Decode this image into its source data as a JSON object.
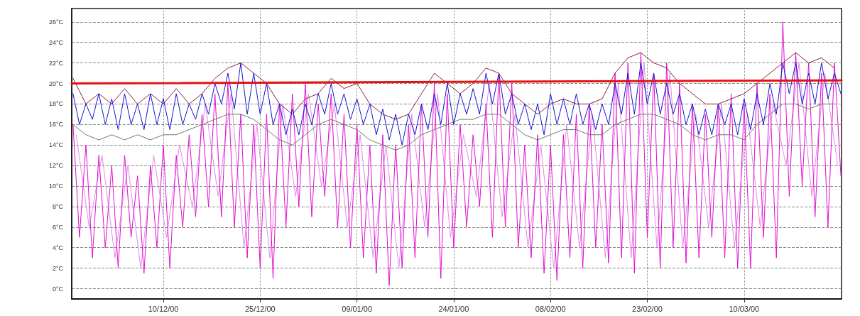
{
  "chart_data": {
    "type": "line",
    "x": [
      "2000-11-26",
      "2000-11-27",
      "2000-11-28",
      "2000-11-29",
      "2000-11-30",
      "2000-12-01",
      "2000-12-02",
      "2000-12-03",
      "2000-12-04",
      "2000-12-05",
      "2000-12-06",
      "2000-12-07",
      "2000-12-08",
      "2000-12-09",
      "2000-12-10",
      "2000-12-11",
      "2000-12-12",
      "2000-12-13",
      "2000-12-14",
      "2000-12-15",
      "2000-12-16",
      "2000-12-17",
      "2000-12-18",
      "2000-12-19",
      "2000-12-20",
      "2000-12-21",
      "2000-12-22",
      "2000-12-23",
      "2000-12-24",
      "2000-12-25",
      "2000-12-26",
      "2000-12-27",
      "2000-12-28",
      "2000-12-29",
      "2000-12-30",
      "2000-12-31",
      "2001-01-01",
      "2001-01-02",
      "2001-01-03",
      "2001-01-04",
      "2001-01-05",
      "2001-01-06",
      "2001-01-07",
      "2001-01-08",
      "2001-01-09",
      "2001-01-10",
      "2001-01-11",
      "2001-01-12",
      "2001-01-13",
      "2001-01-14",
      "2001-01-15",
      "2001-01-16",
      "2001-01-17",
      "2001-01-18",
      "2001-01-19",
      "2001-01-20",
      "2001-01-21",
      "2001-01-22",
      "2001-01-23",
      "2001-01-24",
      "2001-01-25",
      "2001-01-26",
      "2001-01-27",
      "2001-01-28",
      "2001-01-29",
      "2001-01-30",
      "2001-01-31",
      "2001-02-01",
      "2001-02-02",
      "2001-02-03",
      "2001-02-04",
      "2001-02-05",
      "2001-02-06",
      "2001-02-07",
      "2001-02-08",
      "2001-02-09",
      "2001-02-10",
      "2001-02-11",
      "2001-02-12",
      "2001-02-13",
      "2001-02-14",
      "2001-02-15",
      "2001-02-16",
      "2001-02-17",
      "2001-02-18",
      "2001-02-19",
      "2001-02-20",
      "2001-02-21",
      "2001-02-22",
      "2001-02-23",
      "2001-02-24",
      "2001-02-25",
      "2001-02-26",
      "2001-02-27",
      "2001-02-28",
      "2001-03-01",
      "2001-03-02",
      "2001-03-03",
      "2001-03-04",
      "2001-03-05",
      "2001-03-06",
      "2001-03-07",
      "2001-03-08",
      "2001-03-09",
      "2001-03-10",
      "2001-03-11",
      "2001-03-12",
      "2001-03-13",
      "2001-03-14",
      "2001-03-15",
      "2001-03-16",
      "2001-03-17",
      "2001-03-18",
      "2001-03-19",
      "2001-03-20",
      "2001-03-21",
      "2001-03-22",
      "2001-03-23",
      "2001-03-24",
      "2001-03-25"
    ],
    "series": [
      {
        "color": "#e488ea",
        "x": [
          "2000-11-26T12:00",
          "2000-11-28T12:00",
          "2000-11-30T12:00",
          "2000-12-02T12:00",
          "2000-12-04T12:00",
          "2000-12-06T12:00",
          "2000-12-08T12:00",
          "2000-12-10T12:00",
          "2000-12-12T12:00",
          "2000-12-14T12:00",
          "2000-12-16T12:00",
          "2000-12-18T12:00",
          "2000-12-20T12:00",
          "2000-12-22T12:00",
          "2000-12-24T12:00",
          "2000-12-26T12:00",
          "2000-12-28T12:00",
          "2000-12-30T12:00",
          "2001-01-01T12:00",
          "2001-01-03T12:00",
          "2001-01-05T12:00",
          "2001-01-07T12:00",
          "2001-01-09T12:00",
          "2001-01-11T12:00",
          "2001-01-13T12:00",
          "2001-01-15T12:00",
          "2001-01-17T12:00",
          "2001-01-19T12:00",
          "2001-01-21T12:00",
          "2001-01-23T12:00",
          "2001-01-25T12:00",
          "2001-01-27T12:00",
          "2001-01-29T12:00",
          "2001-01-31T12:00",
          "2001-02-02T12:00",
          "2001-02-04T12:00",
          "2001-02-06T12:00",
          "2001-02-08T12:00",
          "2001-02-10T12:00",
          "2001-02-12T12:00",
          "2001-02-14T12:00",
          "2001-02-16T12:00",
          "2001-02-18T12:00",
          "2001-02-20T12:00",
          "2001-02-22T12:00",
          "2001-02-24T12:00",
          "2001-02-26T12:00",
          "2001-02-28T12:00",
          "2001-03-02T12:00",
          "2001-03-04T12:00",
          "2001-03-06T12:00",
          "2001-03-08T12:00",
          "2001-03-10T12:00",
          "2001-03-12T12:00",
          "2001-03-14T12:00",
          "2001-03-16T12:00",
          "2001-03-18T12:00",
          "2001-03-20T12:00",
          "2001-03-22T12:00",
          "2001-03-24T12:00"
        ],
        "values": [
          15,
          6,
          13,
          3,
          12,
          2,
          13,
          5,
          14,
          8,
          18,
          9,
          19,
          4,
          16,
          3,
          18,
          9,
          19,
          10,
          18,
          6,
          15,
          3,
          14,
          2,
          17,
          6,
          19,
          5,
          15,
          9,
          20,
          7,
          17,
          4,
          14,
          2,
          16,
          4,
          17,
          3,
          20,
          3,
          22,
          4,
          21,
          4,
          17,
          6,
          18,
          4,
          17,
          6,
          18,
          12,
          22,
          9,
          21,
          12
        ]
      },
      {
        "color": "#e010d0",
        "values": [
          16,
          5,
          14,
          3,
          13,
          4,
          12,
          2,
          13,
          5,
          11,
          1.5,
          12,
          4,
          14,
          2,
          13,
          6,
          15,
          7,
          17,
          8,
          19,
          7,
          20,
          6,
          17,
          3,
          16,
          2,
          17,
          1,
          18,
          6,
          19,
          8,
          20,
          7,
          18,
          9,
          19,
          6,
          17,
          4,
          16,
          3,
          14,
          1.5,
          15,
          0.3,
          14,
          2,
          16,
          3,
          18,
          5,
          20,
          1,
          19,
          4,
          16,
          6,
          15,
          8,
          18,
          5,
          21,
          6,
          20,
          4,
          14,
          3,
          15,
          1.5,
          14,
          0.8,
          15,
          3,
          17,
          2,
          18,
          4,
          16,
          2.5,
          21,
          3,
          22,
          1.5,
          23,
          5,
          21,
          2,
          22,
          4,
          20,
          2.5,
          18,
          3,
          17,
          5,
          18,
          3,
          19,
          2,
          18,
          2,
          20,
          5,
          19,
          3,
          26,
          9,
          23,
          10,
          22,
          7,
          21,
          6,
          22,
          11
        ]
      },
      {
        "color": "#6a7a6a",
        "x": [
          "2000-11-26",
          "2000-11-28",
          "2000-11-30",
          "2000-12-02",
          "2000-12-04",
          "2000-12-06",
          "2000-12-08",
          "2000-12-10",
          "2000-12-12",
          "2000-12-14",
          "2000-12-16",
          "2000-12-18",
          "2000-12-20",
          "2000-12-22",
          "2000-12-24",
          "2000-12-26",
          "2000-12-28",
          "2000-12-30",
          "2001-01-01",
          "2001-01-03",
          "2001-01-05",
          "2001-01-07",
          "2001-01-09",
          "2001-01-11",
          "2001-01-13",
          "2001-01-15",
          "2001-01-17",
          "2001-01-19",
          "2001-01-21",
          "2001-01-23",
          "2001-01-25",
          "2001-01-27",
          "2001-01-29",
          "2001-01-31",
          "2001-02-02",
          "2001-02-04",
          "2001-02-06",
          "2001-02-08",
          "2001-02-10",
          "2001-02-12",
          "2001-02-14",
          "2001-02-16",
          "2001-02-18",
          "2001-02-20",
          "2001-02-22",
          "2001-02-24",
          "2001-02-26",
          "2001-02-28",
          "2001-03-02",
          "2001-03-04",
          "2001-03-06",
          "2001-03-08",
          "2001-03-10",
          "2001-03-12",
          "2001-03-14",
          "2001-03-16",
          "2001-03-18",
          "2001-03-20",
          "2001-03-22",
          "2001-03-24"
        ],
        "values": [
          16,
          15,
          14.5,
          15,
          14.5,
          15,
          14.5,
          15,
          15,
          15.5,
          16,
          16.5,
          17,
          17,
          16.5,
          15.5,
          14.5,
          14,
          15,
          16,
          16.5,
          16,
          15.5,
          14.5,
          14,
          13.5,
          14,
          15,
          15.5,
          16,
          16.5,
          16.5,
          17,
          17,
          16,
          15,
          14.5,
          15,
          15.5,
          15.5,
          15,
          15,
          16,
          16.5,
          17,
          17,
          16.5,
          16,
          15,
          14.5,
          15,
          15,
          14.5,
          16,
          17,
          18,
          18,
          17.5,
          18,
          18
        ]
      },
      {
        "color": "#8b1e3f",
        "x": [
          "2000-11-26",
          "2000-11-28",
          "2000-11-30",
          "2000-12-02",
          "2000-12-04",
          "2000-12-06",
          "2000-12-08",
          "2000-12-10",
          "2000-12-12",
          "2000-12-14",
          "2000-12-16",
          "2000-12-18",
          "2000-12-20",
          "2000-12-22",
          "2000-12-24",
          "2000-12-26",
          "2000-12-28",
          "2000-12-30",
          "2001-01-01",
          "2001-01-03",
          "2001-01-05",
          "2001-01-07",
          "2001-01-09",
          "2001-01-11",
          "2001-01-13",
          "2001-01-15",
          "2001-01-17",
          "2001-01-19",
          "2001-01-21",
          "2001-01-23",
          "2001-01-25",
          "2001-01-27",
          "2001-01-29",
          "2001-01-31",
          "2001-02-02",
          "2001-02-04",
          "2001-02-06",
          "2001-02-08",
          "2001-02-10",
          "2001-02-12",
          "2001-02-14",
          "2001-02-16",
          "2001-02-18",
          "2001-02-20",
          "2001-02-22",
          "2001-02-24",
          "2001-02-26",
          "2001-02-28",
          "2001-03-02",
          "2001-03-04",
          "2001-03-06",
          "2001-03-08",
          "2001-03-10",
          "2001-03-12",
          "2001-03-14",
          "2001-03-16",
          "2001-03-18",
          "2001-03-20",
          "2001-03-22",
          "2001-03-24"
        ],
        "values": [
          20.5,
          18,
          19,
          18,
          19.5,
          18,
          19,
          18,
          19.5,
          18,
          19,
          20.5,
          21.5,
          22,
          21,
          20,
          18,
          17,
          18.5,
          19,
          20.5,
          19.5,
          20,
          18,
          17,
          16.5,
          17,
          19,
          21,
          20,
          19,
          20,
          21.5,
          21,
          19,
          18,
          17,
          18,
          18.5,
          18,
          18,
          18.5,
          21,
          22.5,
          23,
          22,
          21.5,
          20,
          19,
          18,
          18,
          18.5,
          19,
          20,
          21,
          22,
          23,
          22,
          22.5,
          21.5
        ]
      },
      {
        "color": "#1414d2",
        "values": [
          19,
          16,
          18,
          16.5,
          19,
          16,
          18.5,
          15.5,
          19,
          16,
          18,
          15.5,
          19,
          16,
          18.5,
          15.5,
          19,
          16,
          18,
          16.5,
          19,
          17,
          20,
          18,
          21,
          17.5,
          22,
          17,
          21,
          17,
          20,
          16,
          18,
          15,
          17.5,
          15,
          18,
          16,
          19,
          17,
          20,
          17,
          19,
          16.5,
          18.5,
          16,
          18,
          15,
          17.5,
          14.5,
          17,
          14,
          17,
          15,
          18,
          15.5,
          19,
          16,
          20,
          16,
          19,
          17,
          19.5,
          17,
          21,
          18,
          21,
          17,
          19,
          16,
          18,
          15.5,
          18,
          15,
          19,
          16,
          18.5,
          16,
          19,
          16,
          18,
          15.5,
          18,
          16,
          20,
          17,
          21,
          17,
          22,
          18,
          21,
          17,
          20,
          17,
          19,
          16,
          18,
          15,
          17.5,
          15,
          18,
          16,
          18,
          15,
          18.5,
          15.5,
          19,
          16,
          20,
          17,
          22,
          19,
          22,
          18,
          21,
          18,
          22,
          18.5,
          21,
          19
        ]
      },
      {
        "color": "#e81010",
        "x": [
          "2000-11-25T19:12",
          "2001-03-25T02:24"
        ],
        "values": [
          20.0,
          20.3
        ]
      }
    ],
    "xlim": [
      "2000-11-25T19:12",
      "2001-03-25T02:24"
    ],
    "xticks": [
      {
        "value": "2000-12-10",
        "label": "10/12/00"
      },
      {
        "value": "2000-12-25",
        "label": "25/12/00"
      },
      {
        "value": "2001-01-09",
        "label": "09/01/00"
      },
      {
        "value": "2001-01-24",
        "label": "24/01/00"
      },
      {
        "value": "2001-02-08",
        "label": "08/02/00"
      },
      {
        "value": "2001-02-23",
        "label": "23/02/00"
      },
      {
        "value": "2001-03-10",
        "label": "10/03/00"
      }
    ],
    "ylim": [
      -1,
      27.3
    ],
    "yticks": [
      {
        "value": 0,
        "label": "0°C"
      },
      {
        "value": 2,
        "label": "2°C"
      },
      {
        "value": 4,
        "label": "4°C"
      },
      {
        "value": 6,
        "label": "6°C"
      },
      {
        "value": 8,
        "label": "8°C"
      },
      {
        "value": 10,
        "label": "10°C"
      },
      {
        "value": 12,
        "label": "12°C"
      },
      {
        "value": 14,
        "label": "14°C"
      },
      {
        "value": 16,
        "label": "16°C"
      },
      {
        "value": 18,
        "label": "18°C"
      },
      {
        "value": 20,
        "label": "20°C"
      },
      {
        "value": 22,
        "label": "22°C"
      },
      {
        "value": 24,
        "label": "24°C"
      },
      {
        "value": 26,
        "label": "26°C"
      }
    ],
    "grid": true,
    "marker": "none",
    "line_style": "solid"
  }
}
